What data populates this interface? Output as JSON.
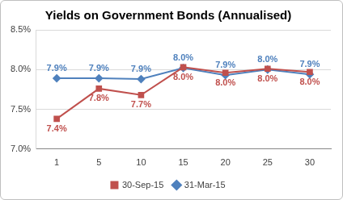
{
  "chart_data": {
    "type": "line",
    "title": "Yields on Government Bonds (Annualised)",
    "categories": [
      "1",
      "5",
      "10",
      "15",
      "20",
      "25",
      "30"
    ],
    "series": [
      {
        "name": "30-Sep-15",
        "color": "#c0504d",
        "marker": "square",
        "values": [
          7.38,
          7.76,
          7.68,
          8.03,
          7.96,
          8.01,
          7.97
        ],
        "value_labels": [
          "7.4%",
          "7.8%",
          "7.7%",
          "8.0%",
          "8.0%",
          "8.0%",
          "8.0%"
        ]
      },
      {
        "name": "31-Mar-15",
        "color": "#4f81bd",
        "marker": "diamond",
        "values": [
          7.89,
          7.89,
          7.88,
          8.02,
          7.93,
          8.0,
          7.94
        ],
        "value_labels": [
          "7.9%",
          "7.9%",
          "7.9%",
          "8.0%",
          "7.9%",
          "8.0%",
          "7.9%"
        ]
      }
    ],
    "ylim": [
      7.0,
      8.5
    ],
    "yticks": [
      {
        "value": 7.0,
        "label": "7.0%"
      },
      {
        "value": 7.5,
        "label": "7.5%"
      },
      {
        "value": 8.0,
        "label": "8.0%"
      },
      {
        "value": 8.5,
        "label": "8.5%"
      }
    ],
    "grid": true,
    "legend": "bottom",
    "data_labels": true
  }
}
